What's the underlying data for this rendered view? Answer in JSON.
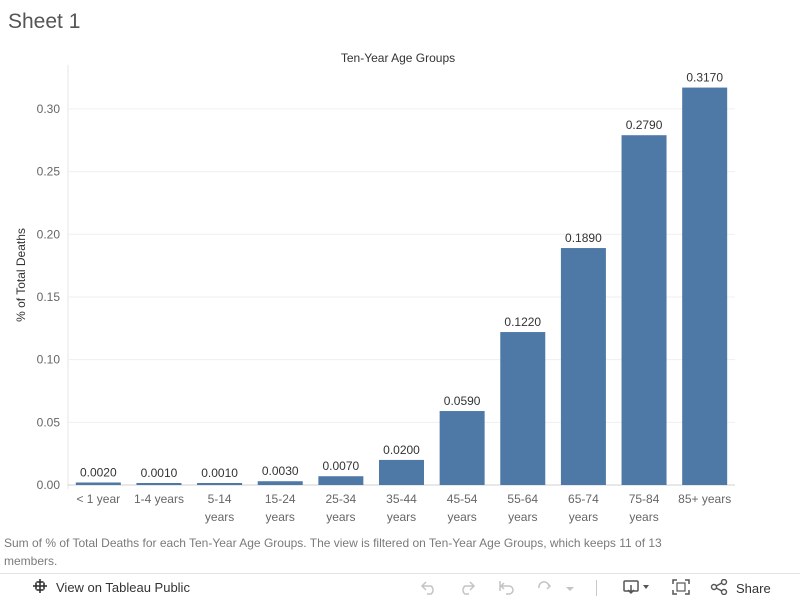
{
  "sheet": {
    "title": "Sheet 1"
  },
  "chart_data": {
    "type": "bar",
    "title": "Ten-Year Age Groups",
    "xlabel": "",
    "ylabel": "% of Total Deaths",
    "categories": [
      [
        "< 1 year"
      ],
      [
        "1-4 years"
      ],
      [
        "5-14",
        "years"
      ],
      [
        "15-24",
        "years"
      ],
      [
        "25-34",
        "years"
      ],
      [
        "35-44",
        "years"
      ],
      [
        "45-54",
        "years"
      ],
      [
        "55-64",
        "years"
      ],
      [
        "65-74",
        "years"
      ],
      [
        "75-84",
        "years"
      ],
      [
        "85+ years"
      ]
    ],
    "values": [
      0.002,
      0.001,
      0.001,
      0.003,
      0.007,
      0.02,
      0.059,
      0.122,
      0.189,
      0.279,
      0.317
    ],
    "value_labels": [
      "0.0020",
      "0.0010",
      "0.0010",
      "0.0030",
      "0.0070",
      "0.0200",
      "0.0590",
      "0.1220",
      "0.1890",
      "0.2790",
      "0.3170"
    ],
    "yticks": [
      0,
      0.05,
      0.1,
      0.15,
      0.2,
      0.25,
      0.3
    ],
    "ytick_labels": [
      "0.00",
      "0.05",
      "0.10",
      "0.15",
      "0.20",
      "0.25",
      "0.30"
    ],
    "ylim": [
      0,
      0.335
    ],
    "grid": true,
    "bar_color": "#4e79a7"
  },
  "caption": "Sum of % of Total Deaths for each Ten-Year Age Groups. The view is filtered on Ten-Year Age Groups, which keeps 11 of 13 members.",
  "toolbar": {
    "view_label": "View on Tableau Public",
    "share_label": "Share"
  }
}
